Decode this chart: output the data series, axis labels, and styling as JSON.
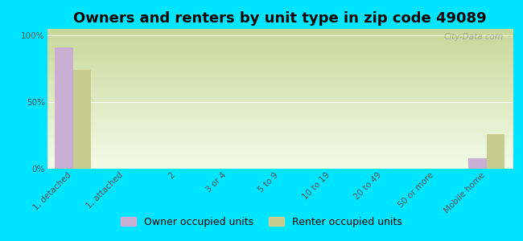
{
  "title": "Owners and renters by unit type in zip code 49089",
  "categories": [
    "1, detached",
    "1, attached",
    "2",
    "3 or 4",
    "5 to 9",
    "10 to 19",
    "20 to 49",
    "50 or more",
    "Mobile home"
  ],
  "owner_values": [
    91,
    0,
    0,
    0,
    0,
    0,
    0,
    0,
    8
  ],
  "renter_values": [
    74,
    0,
    0,
    0,
    0,
    0,
    0,
    0,
    26
  ],
  "owner_color": "#c9afd4",
  "renter_color": "#c8cc8e",
  "grad_top": "#c8d89a",
  "grad_bottom": "#f2fce8",
  "outer_bg": "#00e5ff",
  "ylabel_ticks": [
    0,
    50,
    100
  ],
  "ylabel_labels": [
    "0%",
    "50%",
    "100%"
  ],
  "ylim": [
    0,
    105
  ],
  "bar_width": 0.35,
  "legend_owner": "Owner occupied units",
  "legend_renter": "Renter occupied units",
  "watermark": "City-Data.com",
  "title_fontsize": 13,
  "tick_fontsize": 7.5,
  "legend_fontsize": 9
}
